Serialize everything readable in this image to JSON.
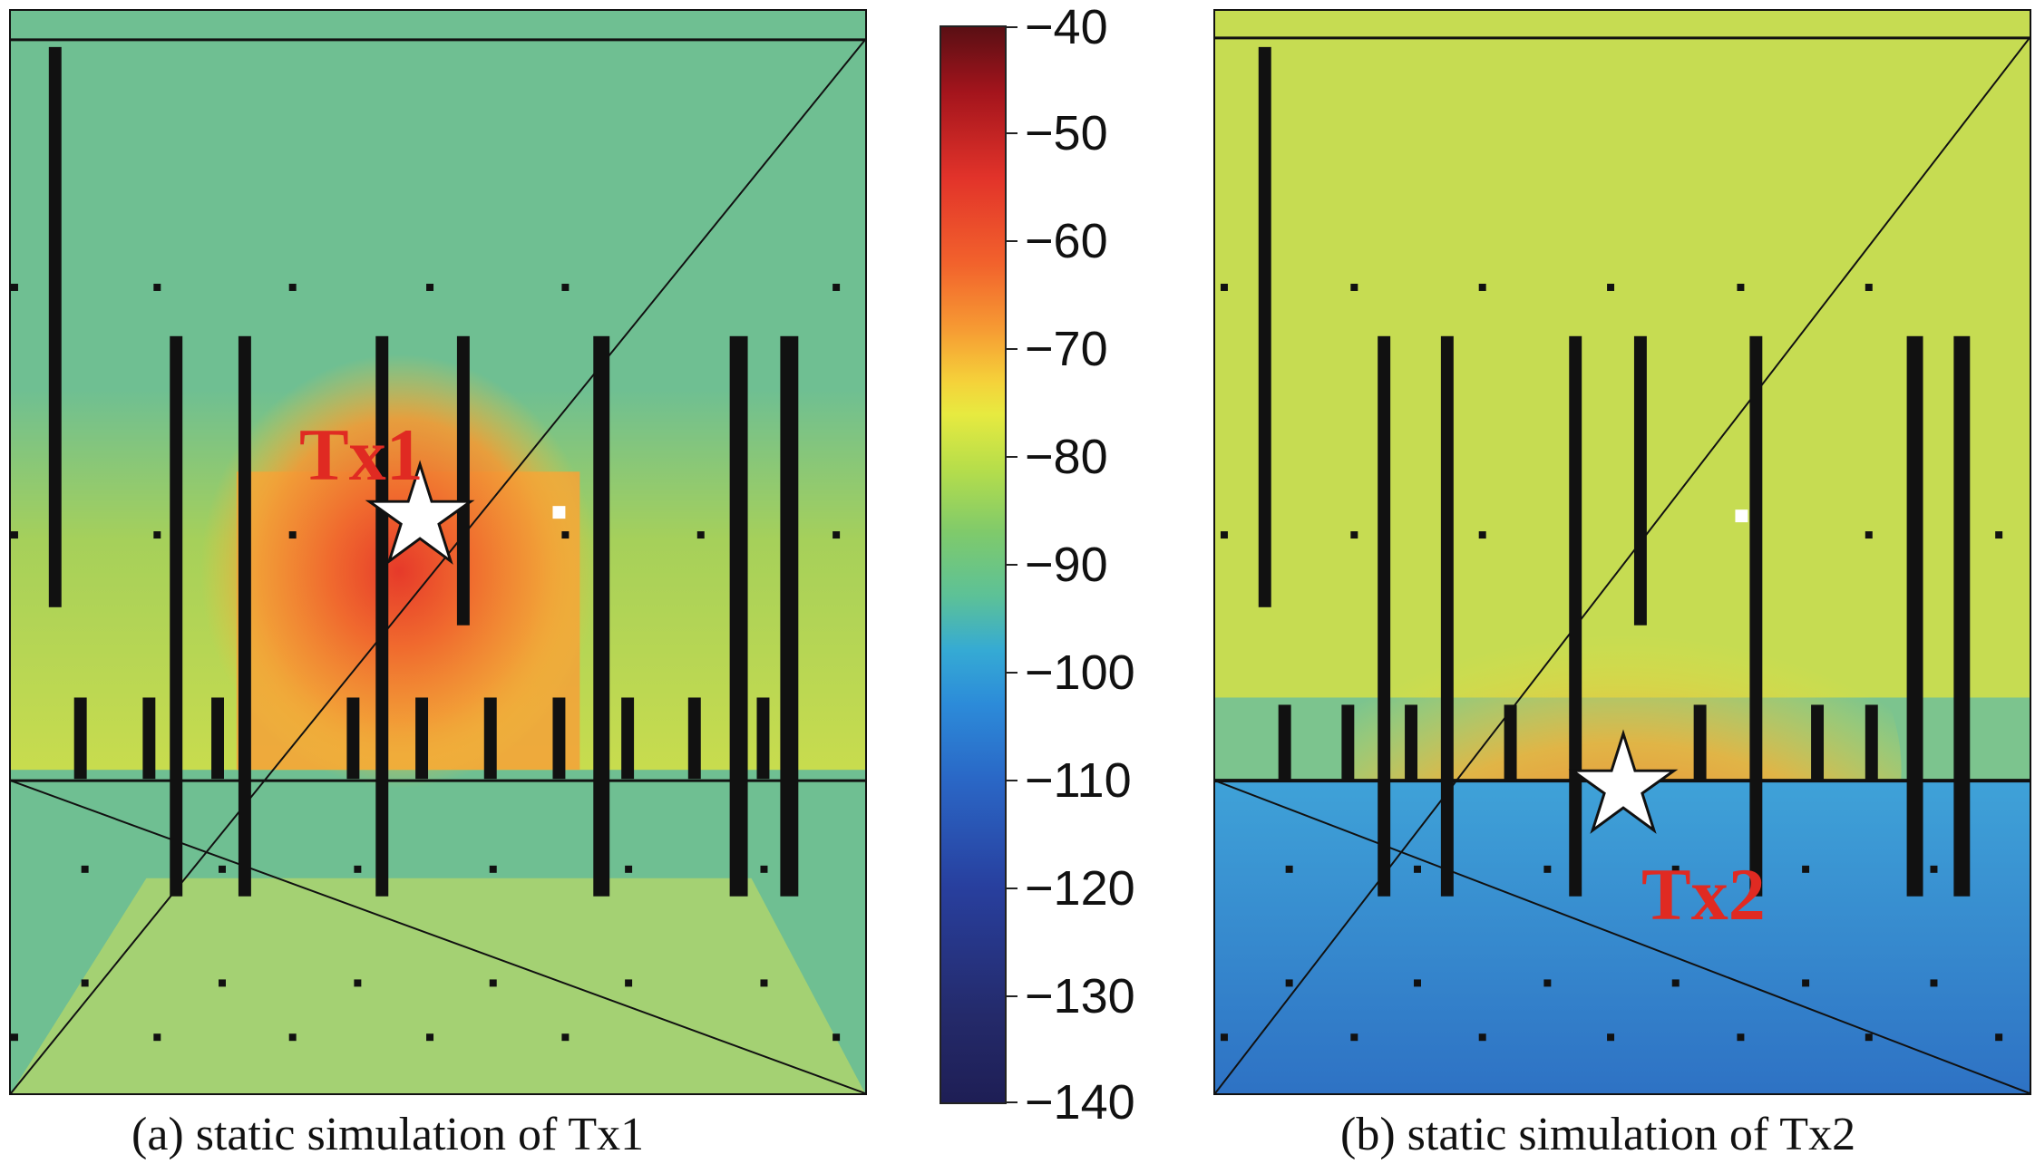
{
  "panels": [
    {
      "id": "a",
      "caption": "(a) static simulation of Tx1",
      "tx_label": "Tx1"
    },
    {
      "id": "b",
      "caption": "(b) static simulation of Tx2",
      "tx_label": "Tx2"
    }
  ],
  "colorbar": {
    "ticks": [
      "−40",
      "−50",
      "−60",
      "−70",
      "−80",
      "−90",
      "−100",
      "−110",
      "−120",
      "−130",
      "−140"
    ],
    "range": [
      -140,
      -40
    ]
  },
  "chart_data": {
    "type": "heatmap",
    "colorbar_range": [
      -140,
      -40
    ],
    "colorbar_ticks": [
      -40,
      -50,
      -60,
      -70,
      -80,
      -90,
      -100,
      -110,
      -120,
      -130,
      -140
    ],
    "panels": [
      {
        "caption": "(a) static simulation of Tx1",
        "transmitter": "Tx1"
      },
      {
        "caption": "(b) static simulation of Tx2",
        "transmitter": "Tx2"
      }
    ]
  }
}
